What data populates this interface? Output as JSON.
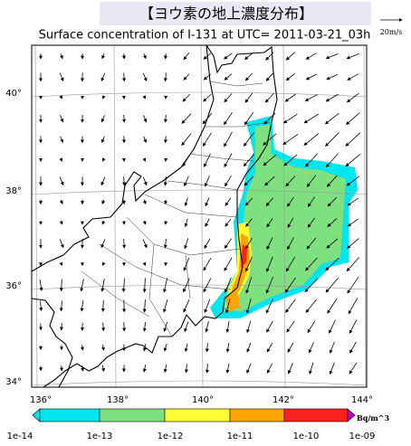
{
  "header": {
    "title": "【ヨウ素の地上濃度分布】"
  },
  "subtitle": "Surface concentration of I-131 at UTC= 2011-03-21_03h",
  "scale": {
    "label": "20m/s"
  },
  "latitude_labels": [
    "40°",
    "38°",
    "36°",
    "34°"
  ],
  "longitude_labels": [
    "136°",
    "138°",
    "140°",
    "142°",
    "144°"
  ],
  "colorbar": {
    "labels": [
      "1e-14",
      "1e-13",
      "1e-12",
      "1e-11",
      "1e-10",
      "1e-09"
    ],
    "unit": "Bq/m^3"
  }
}
